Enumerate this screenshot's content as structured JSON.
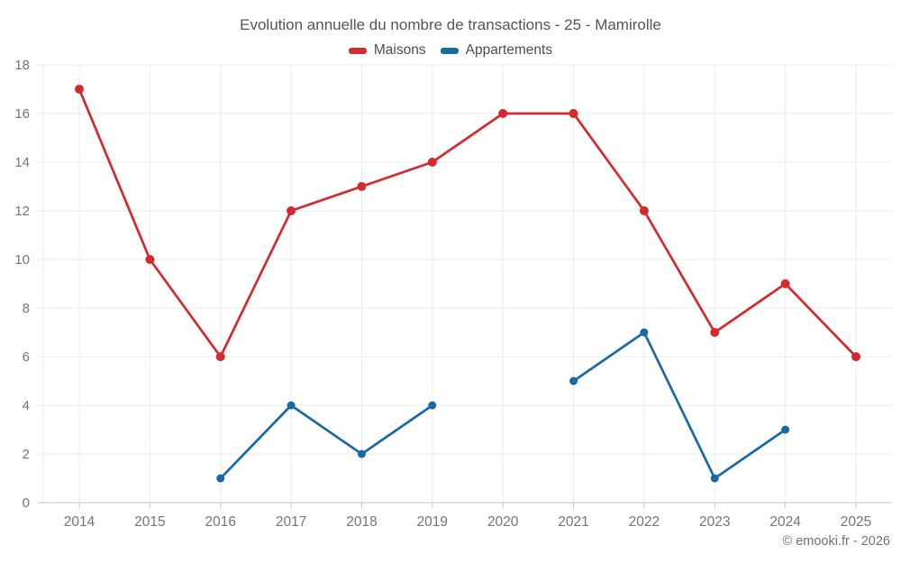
{
  "figure": {
    "copyright": "© emooki.fr - 2026"
  },
  "chart_data": {
    "type": "line",
    "title": "Evolution annuelle du nombre de transactions - 25 - Mamirolle",
    "categories": [
      "2014",
      "2015",
      "2016",
      "2017",
      "2018",
      "2019",
      "2020",
      "2021",
      "2022",
      "2023",
      "2024",
      "2025"
    ],
    "series": [
      {
        "name": "Maisons",
        "color": "#d5292e",
        "marker_radius": 5,
        "values": [
          17,
          10,
          6,
          12,
          13,
          14,
          16,
          16,
          12,
          7,
          9,
          6
        ]
      },
      {
        "name": "Appartements",
        "color": "#176aa6",
        "marker_radius": 4.5,
        "values": [
          null,
          null,
          1,
          4,
          2,
          4,
          null,
          5,
          7,
          1,
          3,
          null
        ]
      }
    ],
    "xlabel": "",
    "ylabel": "",
    "ylim": [
      0,
      18
    ],
    "ytick_step": 2,
    "grid": true,
    "legend_position": "top"
  },
  "theme": {
    "background": "#ffffff",
    "grid_color": "#ececec",
    "axis_color": "#c6c6c6",
    "tick_label_color": "#757575",
    "title_color": "#545454",
    "legend_text_color": "#4d4d4d",
    "copyright_color": "#707070"
  }
}
